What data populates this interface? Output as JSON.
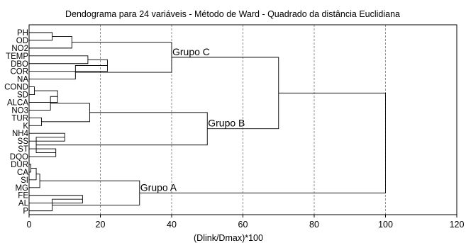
{
  "chart_data": {
    "type": "dendrogram",
    "title": "Dendograma para 24 variáveis - Método de Ward - Quadrado da distância Euclidiana",
    "xlabel": "(Dlink/Dmax)*100",
    "ylabel": "",
    "xlim": [
      0,
      120
    ],
    "xticks": [
      0,
      20,
      40,
      60,
      80,
      100,
      120
    ],
    "grid": "vertical dashed",
    "leaves": [
      "PH",
      "OD",
      "NO2",
      "TEMP",
      "DBO",
      "COR",
      "NA",
      "COND",
      "SD",
      "ALCA",
      "NO3",
      "TUR",
      "K",
      "NH4",
      "SS",
      "ST",
      "DQO",
      "DUR",
      "CA",
      "SI",
      "MG",
      "FE",
      "AL",
      "P"
    ],
    "merges": [
      {
        "id": "c1",
        "children": [
          "PH",
          "OD"
        ],
        "height": 6.5
      },
      {
        "id": "c2",
        "children": [
          "c1",
          "NO2"
        ],
        "height": 12
      },
      {
        "id": "c3",
        "children": [
          "TEMP",
          "DBO"
        ],
        "height": 16.5
      },
      {
        "id": "c4",
        "children": [
          "c3",
          "COR"
        ],
        "height": 22
      },
      {
        "id": "c5",
        "children": [
          "c4",
          "NA"
        ],
        "height": 13
      },
      {
        "id": "c6",
        "children": [
          "c2",
          "c5"
        ],
        "height": 40
      },
      {
        "id": "c7",
        "children": [
          "COND",
          "SD"
        ],
        "height": 1.5
      },
      {
        "id": "c8",
        "children": [
          "c7",
          "ALCA"
        ],
        "height": 8
      },
      {
        "id": "c9",
        "children": [
          "c8",
          "NO3"
        ],
        "height": 6
      },
      {
        "id": "c10",
        "children": [
          "TUR",
          "K"
        ],
        "height": 3.5
      },
      {
        "id": "c11",
        "children": [
          "c9",
          "c10"
        ],
        "height": 17
      },
      {
        "id": "c12",
        "children": [
          "NH4",
          "SS"
        ],
        "height": 10
      },
      {
        "id": "c13",
        "children": [
          "ST",
          "DQO"
        ],
        "height": 7.5
      },
      {
        "id": "c14",
        "children": [
          "c12",
          "c13"
        ],
        "height": 2
      },
      {
        "id": "c15",
        "children": [
          "c11",
          "c14"
        ],
        "height": 50
      },
      {
        "id": "c16",
        "children": [
          "c6",
          "c15"
        ],
        "height": 70
      },
      {
        "id": "c17",
        "children": [
          "DUR",
          "CA"
        ],
        "height": 0.5
      },
      {
        "id": "c18",
        "children": [
          "c17",
          "SI"
        ],
        "height": 2
      },
      {
        "id": "c19",
        "children": [
          "c18",
          "MG"
        ],
        "height": 3
      },
      {
        "id": "c20",
        "children": [
          "FE",
          "AL"
        ],
        "height": 15
      },
      {
        "id": "c21",
        "children": [
          "c20",
          "P"
        ],
        "height": 6.5
      },
      {
        "id": "c22",
        "children": [
          "c19",
          "c21"
        ],
        "height": 31
      },
      {
        "id": "c23",
        "children": [
          "c16",
          "c22"
        ],
        "height": 100
      }
    ],
    "annotations": [
      {
        "text": "Grupo C",
        "cluster": "c6"
      },
      {
        "text": "Grupo B",
        "cluster": "c15"
      },
      {
        "text": "Grupo A",
        "cluster": "c22"
      }
    ]
  }
}
